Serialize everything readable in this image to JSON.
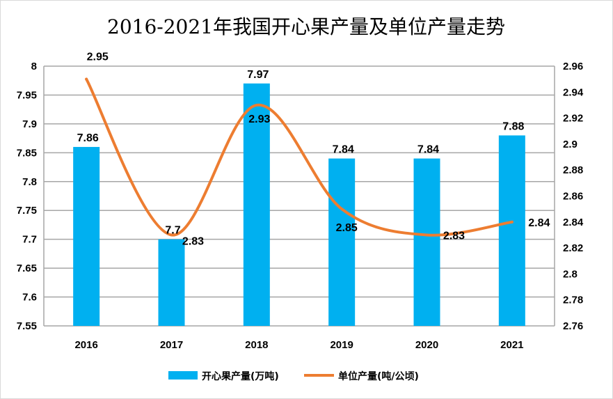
{
  "chart_data": {
    "type": "bar+line",
    "title": "2016-2021年我国开心果产量及单位产量走势",
    "categories": [
      "2016",
      "2017",
      "2018",
      "2019",
      "2020",
      "2021"
    ],
    "series": [
      {
        "name": "开心果产量(万吨)",
        "type": "bar",
        "axis": "left",
        "color": "#00B0F0",
        "values": [
          7.86,
          7.7,
          7.97,
          7.84,
          7.84,
          7.88
        ]
      },
      {
        "name": "单位产量(吨/公顷)",
        "type": "line",
        "smooth": true,
        "axis": "right",
        "color": "#ED7D31",
        "values": [
          2.95,
          2.83,
          2.93,
          2.85,
          2.83,
          2.84
        ]
      }
    ],
    "y_left": {
      "range": [
        7.55,
        8
      ],
      "ticks": [
        "7.55",
        "7.6",
        "7.65",
        "7.7",
        "7.75",
        "7.8",
        "7.85",
        "7.9",
        "7.95",
        "8"
      ]
    },
    "y_right": {
      "range": [
        2.76,
        2.96
      ],
      "ticks": [
        "2.76",
        "2.78",
        "2.8",
        "2.82",
        "2.84",
        "2.86",
        "2.88",
        "2.9",
        "2.92",
        "2.94",
        "2.96"
      ]
    },
    "grid": true,
    "legend": "bottom"
  }
}
